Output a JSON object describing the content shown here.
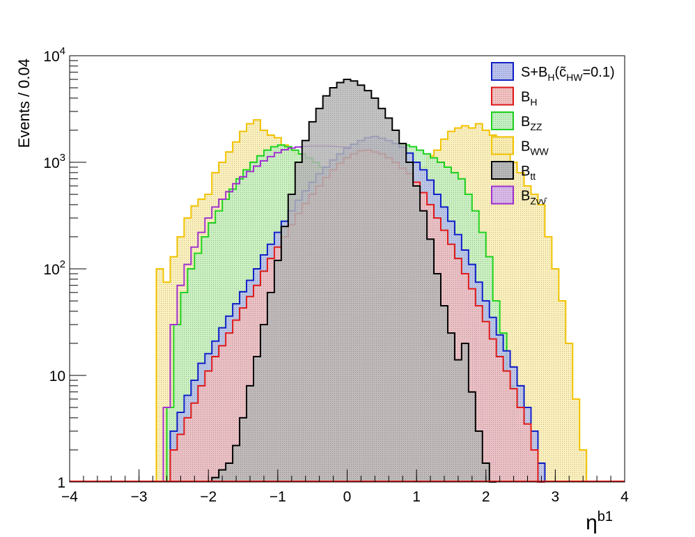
{
  "chart_data": {
    "type": "step-histogram",
    "xlabel": "η",
    "xlabel_sup": "b1",
    "ylabel": "Events / 0.04",
    "x_range": [
      -4,
      4
    ],
    "y_range": [
      1,
      10000
    ],
    "y_scale": "log",
    "bin_width": 0.1,
    "x_ticks": [
      {
        "value": -4,
        "label": "−4"
      },
      {
        "value": -3,
        "label": "−3"
      },
      {
        "value": -2,
        "label": "−2"
      },
      {
        "value": -1,
        "label": "−1"
      },
      {
        "value": 0,
        "label": "0"
      },
      {
        "value": 1,
        "label": "1"
      },
      {
        "value": 2,
        "label": "2"
      },
      {
        "value": 3,
        "label": "3"
      },
      {
        "value": 4,
        "label": "4"
      }
    ],
    "y_ticks": [
      {
        "value": 1,
        "label": "1"
      },
      {
        "value": 10,
        "label": "10"
      },
      {
        "value": 100,
        "base": "10",
        "exp": "2"
      },
      {
        "value": 1000,
        "base": "10",
        "exp": "3"
      },
      {
        "value": 10000,
        "base": "10",
        "exp": "4"
      }
    ],
    "legend_position": "top-right",
    "series": [
      {
        "key": "wwb",
        "legend": {
          "main": "B",
          "sub": "WW"
        },
        "color": "#f2c200",
        "fill": "#fbeeb0",
        "x_start": -2.75,
        "values": [
          100,
          75,
          130,
          200,
          300,
          390,
          450,
          500,
          800,
          1000,
          1250,
          1550,
          1950,
          2300,
          2500,
          2000,
          1800,
          1700,
          1450,
          1300,
          1200,
          1000,
          900,
          700,
          480,
          350,
          320,
          320,
          280,
          300,
          300,
          220,
          170,
          250,
          250,
          350,
          450,
          600,
          900,
          1150,
          1300,
          1650,
          1950,
          2100,
          2200,
          2100,
          2300,
          2000,
          1800,
          1700,
          1300,
          1000,
          800,
          600,
          500,
          400,
          200,
          100,
          50,
          20,
          6,
          2
        ]
      },
      {
        "key": "zz",
        "legend": {
          "main": "B",
          "sub": "ZZ"
        },
        "color": "#1ed21e",
        "fill": "#c2f1c2",
        "x_start": -2.6,
        "values": [
          5,
          30,
          60,
          100,
          140,
          200,
          270,
          350,
          450,
          560,
          700,
          850,
          1000,
          1150,
          1300,
          1400,
          1450,
          1400,
          1300,
          1200,
          1100,
          1000,
          900,
          850,
          800,
          800,
          820,
          850,
          900,
          1000,
          1100,
          1250,
          1400,
          1450,
          1450,
          1400,
          1300,
          1200,
          1100,
          1000,
          900,
          800,
          700,
          500,
          350,
          220,
          130,
          50,
          25,
          8,
          3,
          1.5
        ]
      },
      {
        "key": "znn",
        "legend": {
          "main": "B",
          "sub": "Zνν̄"
        },
        "color": "#a030d0",
        "fill": "none",
        "x_start": -2.65,
        "values": [
          5,
          30,
          70,
          110,
          160,
          220,
          300,
          380,
          450,
          530,
          630,
          730,
          820,
          920,
          1030,
          1130,
          1230,
          1310,
          1360,
          1390,
          1410,
          1420,
          1420,
          1420,
          1410,
          1400,
          1390,
          1370,
          1340,
          1290,
          1210,
          1110,
          1000,
          900,
          800,
          700,
          600,
          500,
          400,
          300,
          220,
          160,
          110,
          70,
          30,
          8,
          3,
          1.5
        ]
      },
      {
        "key": "sig",
        "legend": {
          "main": "S+B",
          "sub": "H",
          "tail": "(c̃",
          "sub2": "HW",
          "end": "=0.1)"
        },
        "color": "#0f1fc8",
        "fill": "#b8c0ee",
        "x_start": -2.55,
        "values": [
          3,
          4.5,
          6.5,
          9,
          13,
          16,
          21,
          28,
          36,
          47,
          61,
          78,
          100,
          135,
          170,
          220,
          280,
          350,
          440,
          540,
          650,
          780,
          900,
          1050,
          1200,
          1350,
          1480,
          1600,
          1700,
          1750,
          1680,
          1600,
          1500,
          1380,
          1220,
          1000,
          850,
          680,
          500,
          380,
          280,
          210,
          150,
          110,
          75,
          50,
          35,
          24,
          17,
          12,
          8,
          5,
          3,
          1.5
        ]
      },
      {
        "key": "bh",
        "legend": {
          "main": "B",
          "sub": "H"
        },
        "color": "#e01818",
        "fill": "#f4c0c0",
        "x_start": -2.55,
        "values": [
          2,
          2.8,
          4,
          5.5,
          8,
          11,
          15,
          19,
          25,
          33,
          43,
          55,
          70,
          95,
          125,
          160,
          200,
          260,
          330,
          410,
          500,
          600,
          720,
          850,
          980,
          1100,
          1200,
          1280,
          1300,
          1250,
          1200,
          1100,
          1000,
          880,
          780,
          650,
          520,
          400,
          300,
          230,
          170,
          125,
          90,
          65,
          45,
          32,
          22,
          15,
          11,
          7.5,
          5,
          3.5,
          2,
          1
        ]
      },
      {
        "key": "tt",
        "legend": {
          "main": "B",
          "sub": "tt"
        },
        "color": "#000000",
        "fill": "#b8b8b8",
        "x_start": -1.95,
        "values": [
          1.1,
          1.3,
          1.5,
          2.2,
          4,
          8,
          15,
          30,
          60,
          120,
          250,
          500,
          1000,
          1600,
          2400,
          3200,
          4200,
          5000,
          5600,
          6000,
          5800,
          5300,
          4700,
          4000,
          3200,
          2600,
          2000,
          1500,
          1000,
          600,
          350,
          190,
          90,
          45,
          25,
          14,
          20,
          7,
          3,
          1.5,
          1
        ]
      }
    ]
  }
}
